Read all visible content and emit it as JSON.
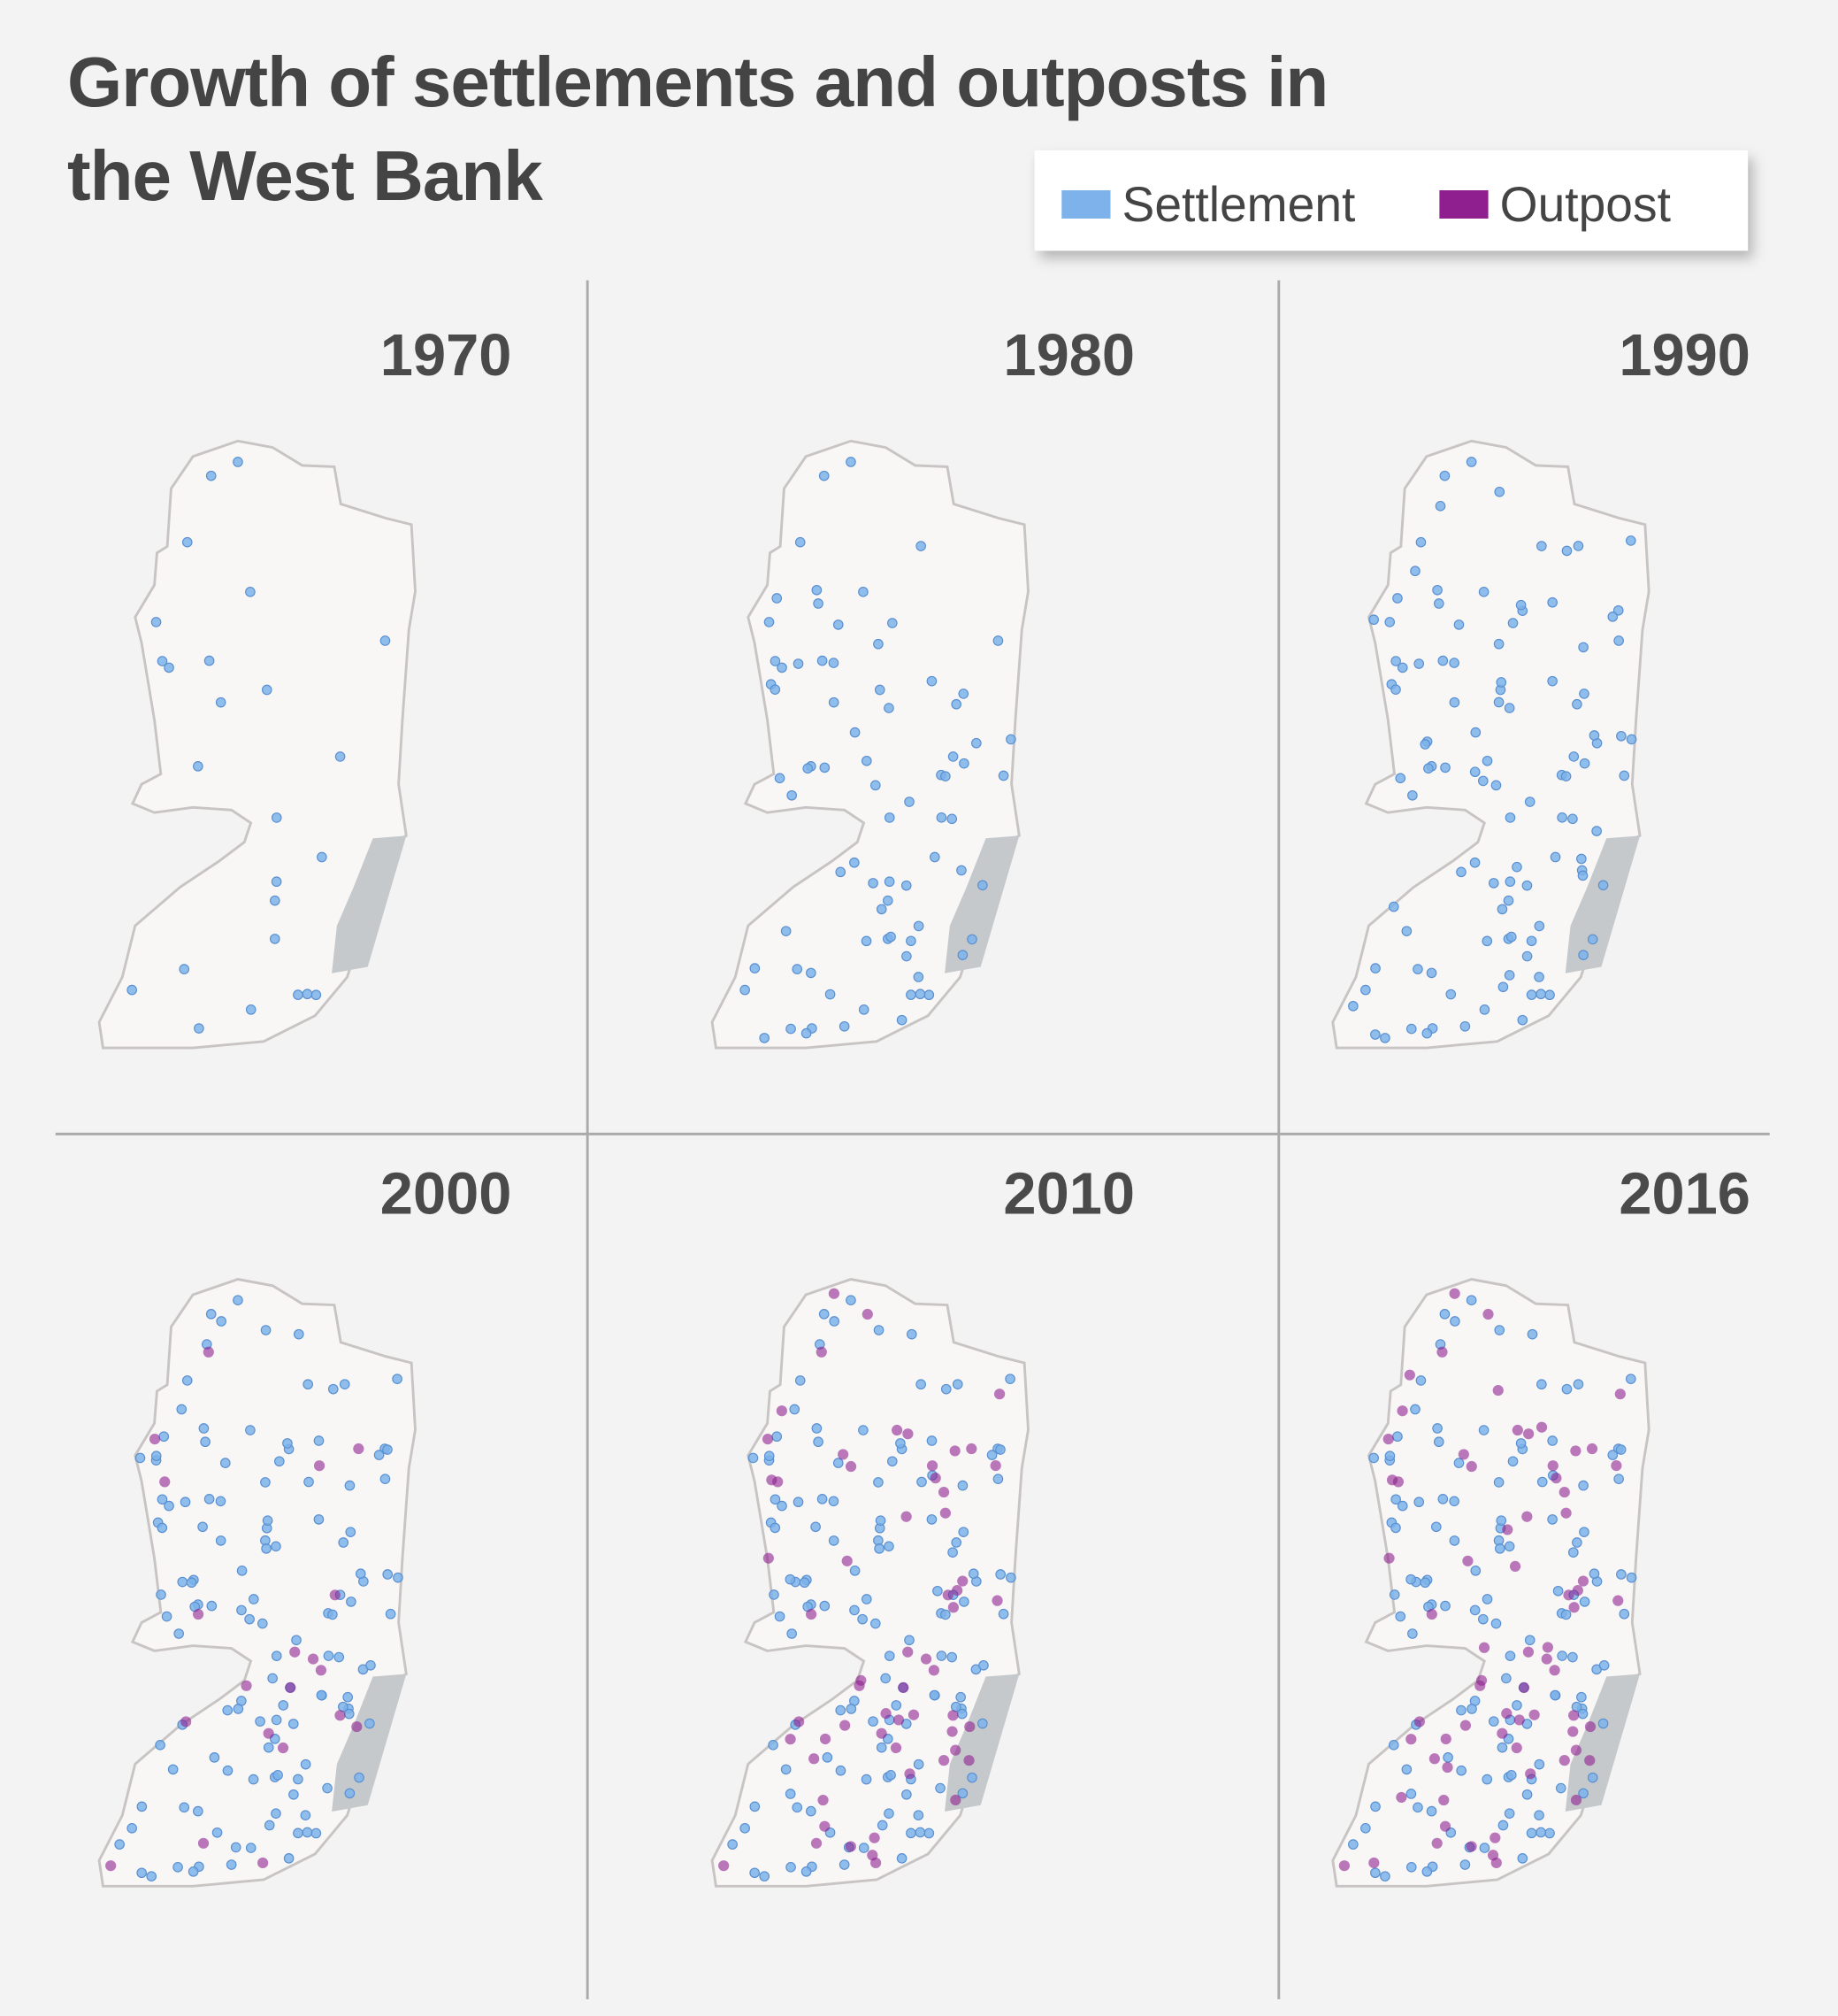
{
  "title": "Growth of settlements and outposts in the West Bank",
  "legend": [
    {
      "label": "Settlement",
      "color": "#7db3ea"
    },
    {
      "label": "Outpost",
      "color": "#8f1f8f"
    }
  ],
  "panels": [
    {
      "year": "1970"
    },
    {
      "year": "1980"
    },
    {
      "year": "1990"
    },
    {
      "year": "2000"
    },
    {
      "year": "2010"
    },
    {
      "year": "2016"
    }
  ]
}
